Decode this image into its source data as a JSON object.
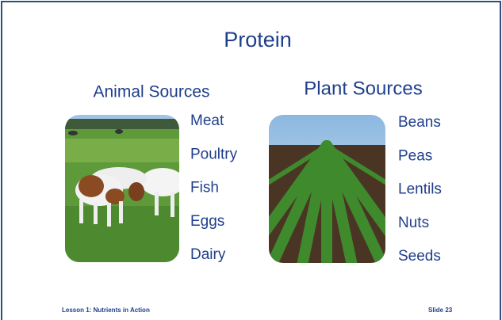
{
  "title": "Protein",
  "columns": [
    {
      "heading": "Animal Sources",
      "items": [
        "Meat",
        "Poultry",
        "Fish",
        "Eggs",
        "Dairy"
      ]
    },
    {
      "heading": "Plant Sources",
      "items": [
        "Beans",
        "Peas",
        "Lentils",
        "Nuts",
        "Seeds"
      ]
    }
  ],
  "footer": {
    "left": "Lesson 1: Nutrients in Action",
    "right": "Slide 23"
  }
}
